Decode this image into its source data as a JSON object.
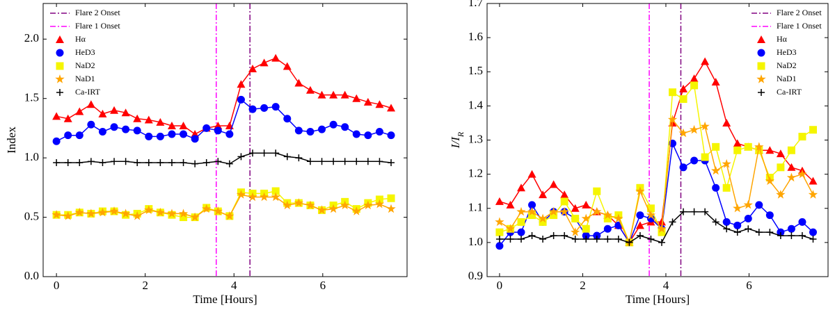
{
  "chart_data": [
    {
      "type": "line",
      "x_label": "Time [Hours]",
      "y_label": "Index",
      "x": [
        0,
        0.26,
        0.52,
        0.78,
        1.04,
        1.3,
        1.56,
        1.82,
        2.08,
        2.34,
        2.6,
        2.86,
        3.12,
        3.38,
        3.64,
        3.9,
        4.16,
        4.42,
        4.68,
        4.94,
        5.2,
        5.46,
        5.72,
        5.98,
        6.24,
        6.5,
        6.76,
        7.02,
        7.28,
        7.54
      ],
      "xlim": [
        -0.3,
        7.9
      ],
      "xticks": [
        0,
        2,
        4,
        6
      ],
      "ylim": [
        0,
        2.3
      ],
      "yticks": [
        {
          "value": 0,
          "label": "0.0"
        },
        {
          "value": 0.5,
          "label": "0.5"
        },
        {
          "value": 1,
          "label": "1.0"
        },
        {
          "value": 1.5,
          "label": "1.5"
        },
        {
          "value": 2,
          "label": "2.0"
        }
      ],
      "legend": "upper left",
      "vlines": [
        {
          "name": "Flare 2 Onset",
          "x": 4.36,
          "color": "#800080"
        },
        {
          "name": "Flare 1 Onset",
          "x": 3.6,
          "color": "#ff00ff"
        }
      ],
      "series": [
        {
          "name": "Hα",
          "color": "#ff0000",
          "marker": "triangle",
          "values": [
            1.35,
            1.33,
            1.39,
            1.45,
            1.37,
            1.4,
            1.38,
            1.33,
            1.32,
            1.3,
            1.27,
            1.27,
            1.2,
            1.25,
            1.27,
            1.27,
            1.62,
            1.75,
            1.8,
            1.84,
            1.77,
            1.63,
            1.57,
            1.53,
            1.53,
            1.53,
            1.5,
            1.47,
            1.45,
            1.42
          ]
        },
        {
          "name": "HeD3",
          "color": "#0000ff",
          "marker": "circle",
          "values": [
            1.14,
            1.19,
            1.19,
            1.28,
            1.22,
            1.26,
            1.24,
            1.23,
            1.18,
            1.18,
            1.2,
            1.2,
            1.16,
            1.25,
            1.23,
            1.2,
            1.49,
            1.41,
            1.42,
            1.43,
            1.33,
            1.23,
            1.22,
            1.24,
            1.28,
            1.26,
            1.2,
            1.19,
            1.22,
            1.19
          ]
        },
        {
          "name": "NaD2",
          "color": "#f5f500",
          "marker": "square",
          "values": [
            0.52,
            0.52,
            0.54,
            0.53,
            0.55,
            0.55,
            0.52,
            0.53,
            0.57,
            0.54,
            0.52,
            0.5,
            0.5,
            0.58,
            0.55,
            0.51,
            0.71,
            0.7,
            0.7,
            0.72,
            0.62,
            0.62,
            0.6,
            0.56,
            0.6,
            0.63,
            0.57,
            0.62,
            0.65,
            0.66
          ]
        },
        {
          "name": "NaD1",
          "color": "#ffa500",
          "marker": "star",
          "values": [
            0.52,
            0.51,
            0.54,
            0.53,
            0.54,
            0.55,
            0.53,
            0.51,
            0.56,
            0.54,
            0.53,
            0.53,
            0.5,
            0.57,
            0.55,
            0.51,
            0.69,
            0.67,
            0.67,
            0.67,
            0.6,
            0.62,
            0.6,
            0.56,
            0.57,
            0.6,
            0.55,
            0.6,
            0.61,
            0.57
          ]
        },
        {
          "name": "Ca-IRT",
          "color": "#000000",
          "marker": "plus",
          "values": [
            0.96,
            0.96,
            0.96,
            0.97,
            0.96,
            0.97,
            0.97,
            0.96,
            0.96,
            0.96,
            0.96,
            0.96,
            0.95,
            0.96,
            0.97,
            0.95,
            1.01,
            1.04,
            1.04,
            1.04,
            1.01,
            1.0,
            0.97,
            0.97,
            0.97,
            0.97,
            0.97,
            0.97,
            0.97,
            0.96
          ]
        }
      ]
    },
    {
      "type": "line",
      "x_label": "Time [Hours]",
      "y_label": "I/I",
      "y_label_sub": "R",
      "x": [
        0,
        0.26,
        0.52,
        0.78,
        1.04,
        1.3,
        1.56,
        1.82,
        2.08,
        2.34,
        2.6,
        2.86,
        3.12,
        3.38,
        3.64,
        3.9,
        4.16,
        4.42,
        4.68,
        4.94,
        5.2,
        5.46,
        5.72,
        5.98,
        6.24,
        6.5,
        6.76,
        7.02,
        7.28,
        7.54
      ],
      "xlim": [
        -0.3,
        7.9
      ],
      "xticks": [
        0,
        2,
        4,
        6
      ],
      "ylim": [
        0.9,
        1.7
      ],
      "yticks": [
        0.9,
        {
          "value": 1,
          "label": "1.0"
        },
        1.1,
        1.2,
        1.3,
        1.4,
        1.5,
        1.6,
        1.7
      ],
      "legend": "upper right",
      "vlines": [
        {
          "name": "Flare 2 Onset",
          "x": 4.36,
          "color": "#800080"
        },
        {
          "name": "Flare 1 Onset",
          "x": 3.6,
          "color": "#ff00ff"
        }
      ],
      "series": [
        {
          "name": "Hα",
          "color": "#ff0000",
          "marker": "triangle",
          "values": [
            1.12,
            1.11,
            1.16,
            1.2,
            1.14,
            1.17,
            1.14,
            1.1,
            1.11,
            1.09,
            1.08,
            1.05,
            1.0,
            1.05,
            1.06,
            1.06,
            1.35,
            1.45,
            1.48,
            1.53,
            1.47,
            1.35,
            1.29,
            1.28,
            1.27,
            1.27,
            1.26,
            1.22,
            1.21,
            1.18
          ]
        },
        {
          "name": "HeD3",
          "color": "#0000ff",
          "marker": "circle",
          "values": [
            0.99,
            1.03,
            1.03,
            1.11,
            1.06,
            1.09,
            1.09,
            1.07,
            1.02,
            1.02,
            1.04,
            1.05,
            1.0,
            1.08,
            1.07,
            1.04,
            1.29,
            1.22,
            1.24,
            1.24,
            1.16,
            1.06,
            1.05,
            1.07,
            1.11,
            1.08,
            1.03,
            1.04,
            1.06,
            1.03
          ]
        },
        {
          "name": "NaD2",
          "color": "#f5f500",
          "marker": "square",
          "values": [
            1.03,
            1.04,
            1.06,
            1.08,
            1.06,
            1.08,
            1.12,
            1.07,
            1.04,
            1.15,
            1.07,
            1.08,
            1.0,
            1.16,
            1.1,
            1.03,
            1.44,
            1.42,
            1.46,
            1.25,
            1.28,
            1.16,
            1.27,
            1.28,
            1.27,
            1.19,
            1.22,
            1.27,
            1.31,
            1.33
          ]
        },
        {
          "name": "NaD1",
          "color": "#ffa500",
          "marker": "star",
          "values": [
            1.06,
            1.04,
            1.09,
            1.09,
            1.07,
            1.09,
            1.09,
            1.03,
            1.07,
            1.09,
            1.08,
            1.07,
            1.0,
            1.15,
            1.08,
            1.04,
            1.36,
            1.32,
            1.33,
            1.34,
            1.21,
            1.23,
            1.1,
            1.11,
            1.28,
            1.18,
            1.14,
            1.19,
            1.2,
            1.14
          ]
        },
        {
          "name": "Ca-IRT",
          "color": "#000000",
          "marker": "plus",
          "values": [
            1.01,
            1.01,
            1.01,
            1.02,
            1.01,
            1.02,
            1.02,
            1.01,
            1.01,
            1.01,
            1.01,
            1.01,
            1.0,
            1.02,
            1.01,
            1.0,
            1.06,
            1.09,
            1.09,
            1.09,
            1.06,
            1.04,
            1.03,
            1.04,
            1.03,
            1.03,
            1.02,
            1.02,
            1.02,
            1.01
          ]
        }
      ]
    }
  ]
}
